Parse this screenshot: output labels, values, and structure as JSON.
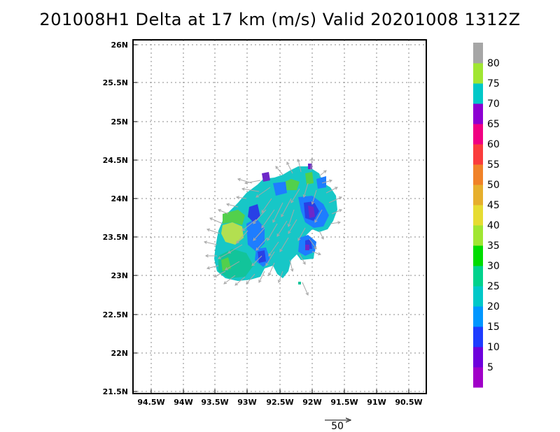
{
  "title": "201008H1 Delta at 17 km (m/s) Valid 20201008 1312Z",
  "map": {
    "lon_labels": [
      "94.5W",
      "94W",
      "93.5W",
      "93W",
      "92.5W",
      "92W",
      "91.5W",
      "91W",
      "90.5W"
    ],
    "lat_labels": [
      "26N",
      "25.5N",
      "25N",
      "24.5N",
      "24N",
      "23.5N",
      "23N",
      "22.5N",
      "22N",
      "21.5N"
    ],
    "lon_range": [
      -94.75,
      -90.25
    ],
    "lat_range": [
      21.5,
      26.05
    ],
    "grid": "dotted"
  },
  "colorbar": {
    "labels": [
      "5",
      "10",
      "15",
      "20",
      "25",
      "30",
      "35",
      "40",
      "45",
      "50",
      "55",
      "60",
      "65",
      "70",
      "75",
      "80"
    ],
    "colors": [
      "#a000c8",
      "#6e00dc",
      "#1e3cff",
      "#0096ff",
      "#00c8c8",
      "#00d28c",
      "#00dc00",
      "#a0e632",
      "#e6dc32",
      "#e6af2d",
      "#f08228",
      "#fa3c3c",
      "#f00082",
      "#8c00d2",
      "#00c8c8",
      "#a0e632",
      "#a6a6a6"
    ]
  },
  "scale_vector": {
    "label": "50"
  },
  "shading_colors": {
    "cyan": "#17c7c7",
    "teal": "#12c49a",
    "green": "#52d04c",
    "blue": "#1e7dff",
    "darkblue": "#2840e6",
    "purple": "#6d28c8",
    "lime": "#b3df50",
    "arrow": "#a8a8a8"
  }
}
